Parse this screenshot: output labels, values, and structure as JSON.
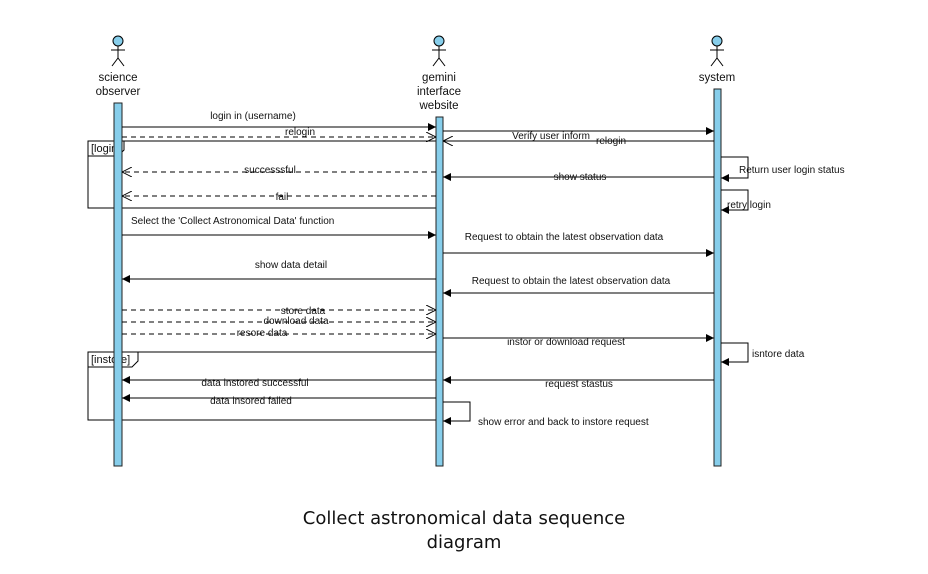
{
  "diagram": {
    "type": "sequence",
    "colors": {
      "lifeline_fill": "#87ceeb",
      "lifeline_stroke": "#222222",
      "actor_head": "#87ceeb",
      "line": "#000000"
    },
    "participants": [
      {
        "id": "observer",
        "name_lines": [
          "science",
          "observer"
        ],
        "icon": "stick-figure-actor"
      },
      {
        "id": "website",
        "name_lines": [
          "gemini",
          "interface",
          "website"
        ],
        "icon": "stick-figure-actor"
      },
      {
        "id": "system",
        "name_lines": [
          "system"
        ],
        "icon": "stick-figure-actor"
      }
    ],
    "fragments": [
      {
        "id": "login",
        "label": "[login]"
      },
      {
        "id": "instore",
        "label": "[instore]"
      }
    ],
    "messages": [
      {
        "id": "m1",
        "from": "observer",
        "to": "website",
        "label": "login in (username)",
        "style": "solid"
      },
      {
        "id": "m2",
        "from": "observer",
        "to": "website",
        "label": "relogin",
        "style": "dashed"
      },
      {
        "id": "m3",
        "from": "website",
        "to": "system",
        "label": "Verify user inform",
        "style": "solid"
      },
      {
        "id": "m4",
        "from": "system",
        "to": "website",
        "label": "relogin",
        "style": "solid"
      },
      {
        "id": "m5",
        "from": "system",
        "to": "system",
        "label": "Return user login status",
        "style": "self"
      },
      {
        "id": "m6",
        "from": "website",
        "to": "observer",
        "label": "successsful",
        "style": "dashed"
      },
      {
        "id": "m7",
        "from": "system",
        "to": "website",
        "label": "show status",
        "style": "solid"
      },
      {
        "id": "m8",
        "from": "website",
        "to": "observer",
        "label": "fail",
        "style": "dashed"
      },
      {
        "id": "m9",
        "from": "system",
        "to": "system",
        "label": "retry login",
        "style": "self"
      },
      {
        "id": "m10",
        "from": "observer",
        "to": "website",
        "label": "Select the 'Collect Astronomical Data' function",
        "style": "solid"
      },
      {
        "id": "m11",
        "from": "website",
        "to": "system",
        "label": "Request to obtain the latest observation data",
        "style": "solid"
      },
      {
        "id": "m12",
        "from": "website",
        "to": "observer",
        "label": "show data detail",
        "style": "solid"
      },
      {
        "id": "m13",
        "from": "system",
        "to": "website",
        "label": "Request to obtain the latest observation data",
        "style": "solid"
      },
      {
        "id": "m14",
        "from": "observer",
        "to": "website",
        "label": "store data",
        "style": "dashed"
      },
      {
        "id": "m15",
        "from": "observer",
        "to": "website",
        "label": "download data",
        "style": "dashed"
      },
      {
        "id": "m16",
        "from": "observer",
        "to": "website",
        "label": "resore data",
        "style": "dashed"
      },
      {
        "id": "m17",
        "from": "website",
        "to": "system",
        "label": "instor or download request",
        "style": "solid"
      },
      {
        "id": "m18",
        "from": "system",
        "to": "system",
        "label": "isntore data",
        "style": "self"
      },
      {
        "id": "m19",
        "from": "website",
        "to": "observer",
        "label": "data instored successful",
        "style": "solid"
      },
      {
        "id": "m20",
        "from": "system",
        "to": "website",
        "label": "request stastus",
        "style": "solid"
      },
      {
        "id": "m21",
        "from": "website",
        "to": "observer",
        "label": "data insored failed",
        "style": "solid"
      },
      {
        "id": "m22",
        "from": "website",
        "to": "website",
        "label": "show error and back to instore request",
        "style": "self"
      }
    ]
  },
  "caption": {
    "line1": "Collect astronomical data sequence",
    "line2": "diagram"
  }
}
